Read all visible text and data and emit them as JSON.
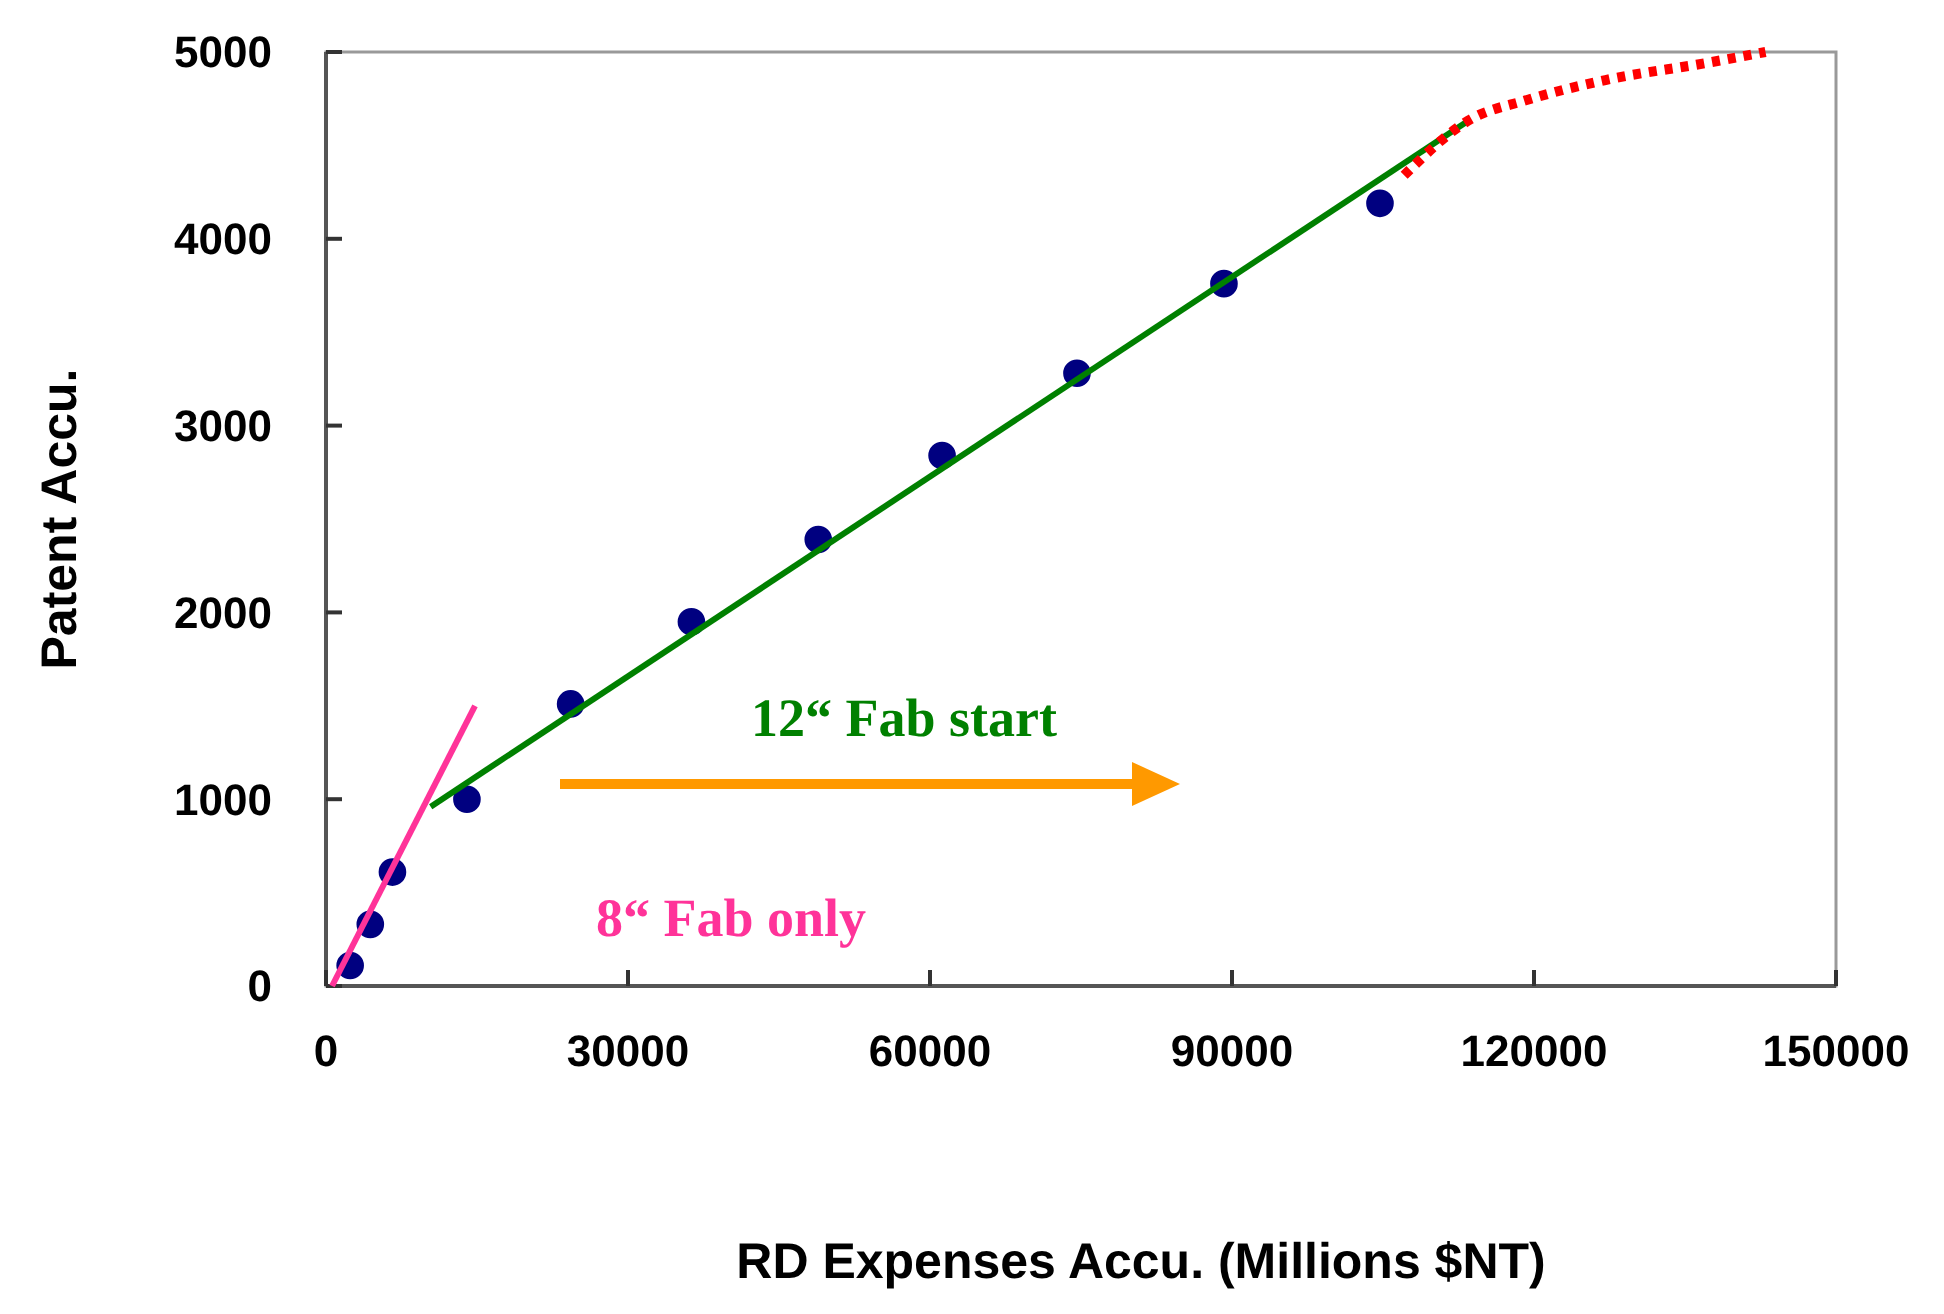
{
  "chart_data": {
    "type": "scatter",
    "xlabel": "RD Expenses Accu. (Millions $NT)",
    "ylabel": "Patent Accu.",
    "xlim": [
      0,
      150000
    ],
    "ylim": [
      0,
      5000
    ],
    "xticks": [
      0,
      30000,
      60000,
      90000,
      120000,
      150000
    ],
    "yticks": [
      0,
      1000,
      2000,
      3000,
      4000,
      5000
    ],
    "grid": false,
    "series": [
      {
        "color": "#000080",
        "marker": "circle",
        "x": [
          2400,
          4400,
          6600,
          14000,
          24300,
          36300,
          48900,
          61200,
          74600,
          89200,
          104700
        ],
        "values": [
          110,
          330,
          610,
          1000,
          1510,
          1950,
          2390,
          2840,
          3280,
          3760,
          4190
        ]
      },
      {
        "type": "line",
        "color": "#ff3399",
        "line_style": "solid",
        "marker": "none",
        "x": [
          600,
          14800
        ],
        "values": [
          0,
          1500
        ]
      },
      {
        "type": "line",
        "color": "#008000",
        "line_style": "solid",
        "marker": "none",
        "x": [
          10400,
          113700
        ],
        "values": [
          960,
          4640
        ]
      },
      {
        "type": "line",
        "color": "#ff0000",
        "line_style": "dotted",
        "marker": "none",
        "x": [
          107100,
          113700,
          119100,
          127100,
          137000,
          143000
        ],
        "values": [
          4340,
          4640,
          4740,
          4850,
          4940,
          5000
        ]
      }
    ],
    "annotations": [
      "12“ Fab start",
      "8“ Fab only"
    ]
  }
}
